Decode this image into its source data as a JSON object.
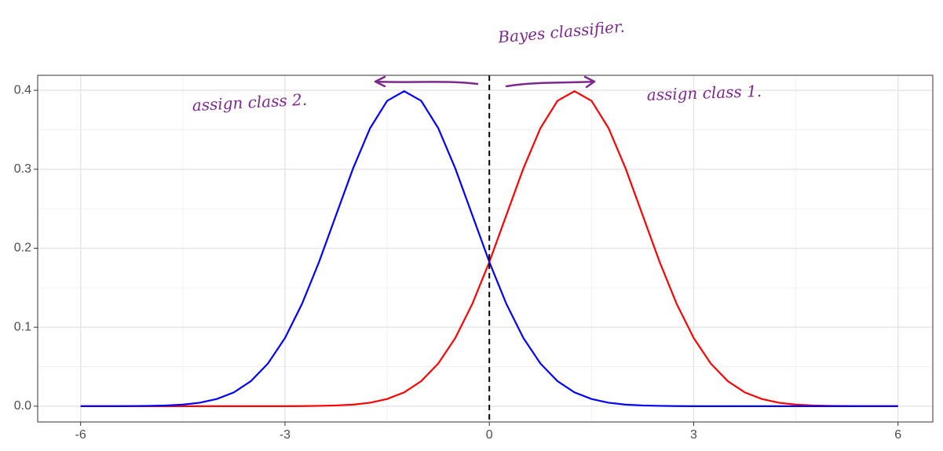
{
  "chart_data": {
    "type": "line",
    "annotations": [
      "Bayes classifier.",
      "assign class 2.",
      "assign class 1."
    ],
    "x": [
      -6,
      -5.75,
      -5.5,
      -5.25,
      -5,
      -4.75,
      -4.5,
      -4.25,
      -4,
      -3.75,
      -3.5,
      -3.25,
      -3,
      -2.75,
      -2.5,
      -2.25,
      -2,
      -1.75,
      -1.5,
      -1.25,
      -1,
      -0.75,
      -0.5,
      -0.25,
      0,
      0.25,
      0.5,
      0.75,
      1,
      1.25,
      1.5,
      1.75,
      2,
      2.25,
      2.5,
      2.75,
      3,
      3.25,
      3.5,
      3.75,
      4,
      4.25,
      4.5,
      4.75,
      5,
      5.25,
      5.5,
      5.75,
      6
    ],
    "series": [
      {
        "name": "class 1",
        "color": "#ff0000",
        "values": [
          0,
          0,
          0,
          0,
          0,
          0,
          0,
          0,
          0,
          0,
          0,
          0,
          0,
          0.0001,
          0.0004,
          0.0009,
          0.002,
          0.0044,
          0.0091,
          0.0175,
          0.0317,
          0.054,
          0.0863,
          0.1295,
          0.1826,
          0.242,
          0.3011,
          0.3521,
          0.3867,
          0.3989,
          0.3867,
          0.3521,
          0.3011,
          0.242,
          0.1826,
          0.1295,
          0.0863,
          0.054,
          0.0317,
          0.0175,
          0.0091,
          0.0044,
          0.002,
          0.0009,
          0.0004,
          0.0001,
          0,
          0,
          0
        ]
      },
      {
        "name": "class 2",
        "color": "#0000ff",
        "values": [
          0,
          0,
          0,
          0.0001,
          0.0004,
          0.0009,
          0.002,
          0.0044,
          0.0091,
          0.0175,
          0.0317,
          0.054,
          0.0863,
          0.1295,
          0.1826,
          0.242,
          0.3011,
          0.3521,
          0.3867,
          0.3989,
          0.3867,
          0.3521,
          0.3011,
          0.242,
          0.1826,
          0.1295,
          0.0863,
          0.054,
          0.0317,
          0.0175,
          0.0091,
          0.0044,
          0.002,
          0.0009,
          0.0004,
          0.0001,
          0,
          0,
          0,
          0,
          0,
          0,
          0,
          0,
          0,
          0,
          0,
          0,
          0
        ]
      }
    ],
    "vline": 0,
    "xlim": [
      -6.63,
      6.51
    ],
    "ylim": [
      -0.02,
      0.419
    ],
    "xticks": [
      -6,
      -3,
      0,
      3,
      6
    ],
    "yticks": [
      {
        "value": 0,
        "label": "0.0"
      },
      0.1,
      0.2,
      0.3,
      0.4
    ],
    "xminor": [
      -4.5,
      -1.5,
      1.5,
      4.5
    ],
    "yminor": [
      0.05,
      0.15,
      0.25,
      0.35
    ],
    "grid": true
  }
}
